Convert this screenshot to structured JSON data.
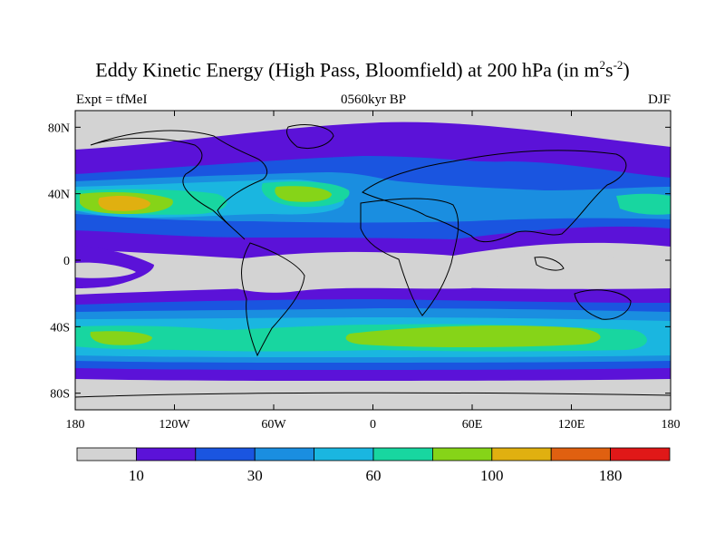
{
  "title": {
    "main": "Eddy Kinetic Energy (High Pass, Bloomfield) at 200 hPa (in m",
    "sup1": "2",
    "mid": "s",
    "sup2": "-2",
    "end": ")"
  },
  "subtitle": {
    "left": "Expt = tfMeI",
    "center": "0560kyr BP",
    "right": "DJF"
  },
  "map": {
    "projection": "cylindrical equidistant",
    "lon_range": [
      -180,
      180
    ],
    "lat_range": [
      -90,
      90
    ],
    "y_ticks": [
      {
        "lat": 80,
        "label": "80N"
      },
      {
        "lat": 40,
        "label": "40N"
      },
      {
        "lat": 0,
        "label": "0"
      },
      {
        "lat": -40,
        "label": "40S"
      },
      {
        "lat": -80,
        "label": "80S"
      }
    ],
    "x_ticks": [
      {
        "lon": -180,
        "label": "180"
      },
      {
        "lon": -120,
        "label": "120W"
      },
      {
        "lon": -60,
        "label": "60W"
      },
      {
        "lon": 0,
        "label": "0"
      },
      {
        "lon": 60,
        "label": "60E"
      },
      {
        "lon": 120,
        "label": "120E"
      },
      {
        "lon": 180,
        "label": "180"
      }
    ]
  },
  "colorbar": {
    "colors": [
      "#d3d3d3",
      "#5b12d8",
      "#1a55e0",
      "#1a8ee0",
      "#1ab6e0",
      "#18d6a0",
      "#86d418",
      "#e0b010",
      "#e06010",
      "#e01818"
    ],
    "labels": [
      {
        "boundary": 1,
        "text": "10"
      },
      {
        "boundary": 3,
        "text": "30"
      },
      {
        "boundary": 5,
        "text": "60"
      },
      {
        "boundary": 7,
        "text": "100"
      },
      {
        "boundary": 9,
        "text": "180"
      }
    ]
  }
}
